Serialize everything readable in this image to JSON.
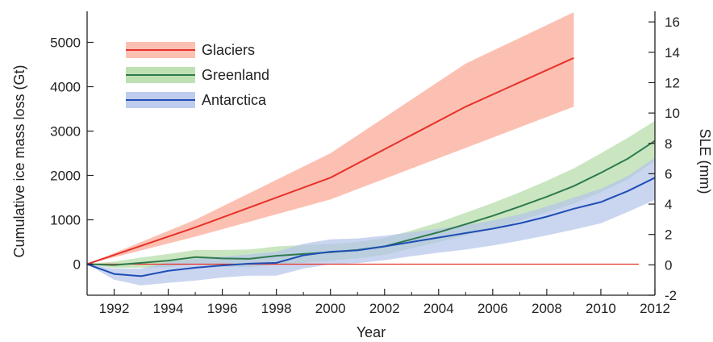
{
  "chart_data": {
    "type": "area",
    "xlabel": "Year",
    "ylabel": "Cumulative ice mass loss (Gt)",
    "y2label": "SLE (mm)",
    "xlim": [
      1991,
      2012
    ],
    "ylim": [
      -700,
      5700
    ],
    "y2lim": [
      -2,
      16.7
    ],
    "x_ticks": [
      1992,
      1994,
      1996,
      1998,
      2000,
      2002,
      2004,
      2006,
      2008,
      2010,
      2012
    ],
    "y_ticks": [
      0,
      1000,
      2000,
      3000,
      4000,
      5000
    ],
    "y2_ticks": [
      -2,
      0,
      2,
      4,
      6,
      8,
      10,
      12,
      14,
      16
    ],
    "legend_position": "top-left",
    "series": [
      {
        "name": "Glaciers",
        "line_color": "#e8312a",
        "band_color": "#fbb5a5",
        "x": [
          1991,
          1995,
          2000,
          2005,
          2009
        ],
        "y": [
          0,
          830,
          1950,
          3550,
          4650
        ],
        "upper": [
          0,
          1000,
          2500,
          4520,
          5680
        ],
        "lower": [
          0,
          620,
          1460,
          2620,
          3550
        ]
      },
      {
        "name": "Greenland",
        "line_color": "#2f7a4f",
        "band_color": "#b3dca6",
        "x": [
          1991,
          1992,
          1993,
          1994,
          1995,
          1996,
          1997,
          1998,
          1999,
          2000,
          2001,
          2002,
          2003,
          2004,
          2005,
          2006,
          2007,
          2008,
          2009,
          2010,
          2011,
          2012
        ],
        "y": [
          0,
          -20,
          30,
          80,
          160,
          130,
          120,
          190,
          230,
          270,
          320,
          400,
          560,
          720,
          900,
          1090,
          1300,
          1520,
          1760,
          2060,
          2380,
          2780
        ],
        "upper": [
          0,
          60,
          150,
          230,
          320,
          320,
          330,
          400,
          430,
          450,
          500,
          590,
          760,
          940,
          1160,
          1380,
          1620,
          1880,
          2160,
          2500,
          2850,
          3230
        ],
        "lower": [
          0,
          -90,
          -80,
          -70,
          0,
          -50,
          -70,
          -10,
          30,
          80,
          130,
          210,
          360,
          500,
          640,
          800,
          980,
          1170,
          1370,
          1620,
          1910,
          2330
        ]
      },
      {
        "name": "Antarctica",
        "line_color": "#1f4eb5",
        "band_color": "#b4c3ea",
        "x": [
          1991,
          1992,
          1993,
          1994,
          1995,
          1996,
          1997,
          1998,
          1999,
          2000,
          2001,
          2002,
          2003,
          2004,
          2005,
          2006,
          2007,
          2008,
          2009,
          2010,
          2011,
          2012
        ],
        "y": [
          0,
          -220,
          -270,
          -150,
          -80,
          -30,
          10,
          30,
          200,
          280,
          310,
          400,
          500,
          600,
          700,
          800,
          920,
          1070,
          1250,
          1400,
          1650,
          1950
        ],
        "upper": [
          0,
          -100,
          -100,
          50,
          120,
          170,
          220,
          280,
          460,
          560,
          580,
          640,
          720,
          800,
          880,
          990,
          1120,
          1300,
          1500,
          1700,
          1990,
          2400
        ],
        "lower": [
          0,
          -350,
          -480,
          -420,
          -370,
          -300,
          -260,
          -260,
          -100,
          0,
          20,
          90,
          180,
          260,
          330,
          420,
          530,
          650,
          780,
          920,
          1180,
          1450
        ]
      }
    ],
    "zero_line_color": "#e8312a"
  }
}
